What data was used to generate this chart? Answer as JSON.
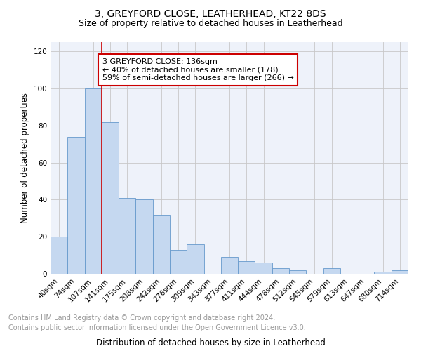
{
  "title": "3, GREYFORD CLOSE, LEATHERHEAD, KT22 8DS",
  "subtitle": "Size of property relative to detached houses in Leatherhead",
  "xlabel": "Distribution of detached houses by size in Leatherhead",
  "ylabel": "Number of detached properties",
  "categories": [
    "40sqm",
    "74sqm",
    "107sqm",
    "141sqm",
    "175sqm",
    "208sqm",
    "242sqm",
    "276sqm",
    "309sqm",
    "343sqm",
    "377sqm",
    "411sqm",
    "444sqm",
    "478sqm",
    "512sqm",
    "545sqm",
    "579sqm",
    "613sqm",
    "647sqm",
    "680sqm",
    "714sqm"
  ],
  "values": [
    20,
    74,
    100,
    82,
    41,
    40,
    32,
    13,
    16,
    0,
    9,
    7,
    6,
    3,
    2,
    0,
    3,
    0,
    0,
    1,
    2
  ],
  "bar_color": "#c5d8f0",
  "bar_edge_color": "#6699cc",
  "vline_color": "#cc0000",
  "annotation_text": "3 GREYFORD CLOSE: 136sqm\n← 40% of detached houses are smaller (178)\n59% of semi-detached houses are larger (266) →",
  "annotation_box_color": "#ffffff",
  "annotation_box_edge": "#cc0000",
  "ylim": [
    0,
    125
  ],
  "yticks": [
    0,
    20,
    40,
    60,
    80,
    100,
    120
  ],
  "footer_line1": "Contains HM Land Registry data © Crown copyright and database right 2024.",
  "footer_line2": "Contains public sector information licensed under the Open Government Licence v3.0.",
  "background_color": "#eef2fa",
  "grid_color": "#c8c8c8",
  "title_fontsize": 10,
  "subtitle_fontsize": 9,
  "axis_label_fontsize": 8.5,
  "tick_fontsize": 7.5,
  "annotation_fontsize": 8,
  "footer_fontsize": 7
}
